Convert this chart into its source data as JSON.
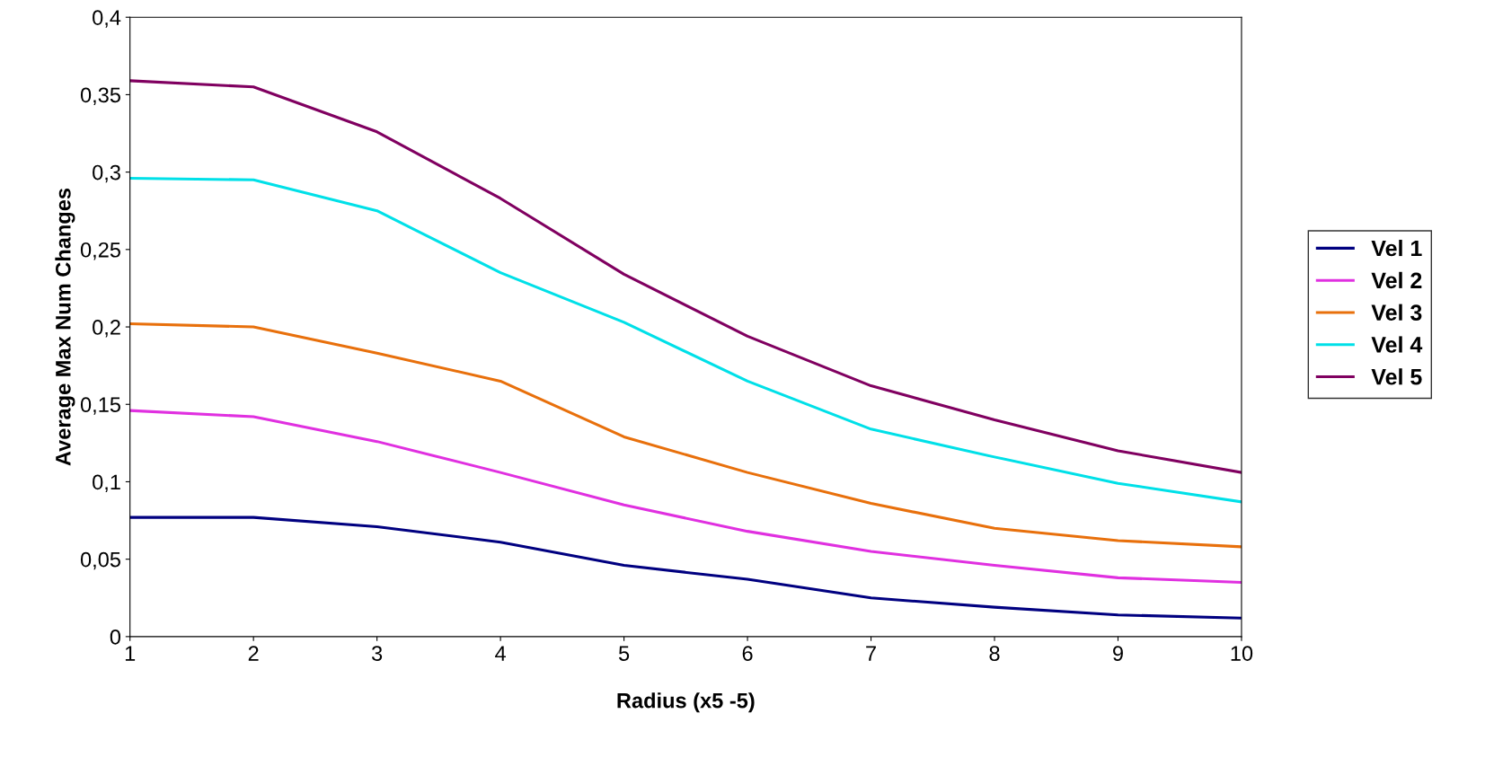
{
  "chart_data": {
    "type": "line",
    "xlabel": "Radius (x5 -5)",
    "ylabel": "Average Max Num Changes",
    "x": [
      1,
      2,
      3,
      4,
      5,
      6,
      7,
      8,
      9,
      10
    ],
    "series": [
      {
        "name": "Vel 1",
        "color": "#000080",
        "values": [
          0.077,
          0.077,
          0.071,
          0.061,
          0.046,
          0.037,
          0.025,
          0.019,
          0.014,
          0.012
        ]
      },
      {
        "name": "Vel 2",
        "color": "#e030e0",
        "values": [
          0.146,
          0.142,
          0.126,
          0.106,
          0.085,
          0.068,
          0.055,
          0.046,
          0.038,
          0.035
        ]
      },
      {
        "name": "Vel 3",
        "color": "#e8700c",
        "values": [
          0.202,
          0.2,
          0.183,
          0.165,
          0.129,
          0.106,
          0.086,
          0.07,
          0.062,
          0.058
        ]
      },
      {
        "name": "Vel 4",
        "color": "#00e0e8",
        "values": [
          0.296,
          0.295,
          0.275,
          0.235,
          0.203,
          0.165,
          0.134,
          0.116,
          0.099,
          0.087
        ]
      },
      {
        "name": "Vel 5",
        "color": "#800060",
        "values": [
          0.359,
          0.355,
          0.326,
          0.283,
          0.234,
          0.194,
          0.162,
          0.14,
          0.12,
          0.106
        ]
      }
    ],
    "xlim": [
      1,
      10
    ],
    "xticks": [
      1,
      2,
      3,
      4,
      5,
      6,
      7,
      8,
      9,
      10
    ],
    "ylim": [
      0,
      0.4
    ],
    "yticks": [
      0,
      {
        "value": 0.05,
        "label": "0,05"
      },
      {
        "value": 0.1,
        "label": "0,1"
      },
      {
        "value": 0.15,
        "label": "0,15"
      },
      {
        "value": 0.2,
        "label": "0,2"
      },
      {
        "value": 0.25,
        "label": "0,25"
      },
      {
        "value": 0.3,
        "label": "0,3"
      },
      {
        "value": 0.35,
        "label": "0,35"
      },
      {
        "value": 0.4,
        "label": "0,4"
      }
    ],
    "grid": false,
    "legend": "right",
    "marker": "none",
    "line_style": "solid"
  }
}
